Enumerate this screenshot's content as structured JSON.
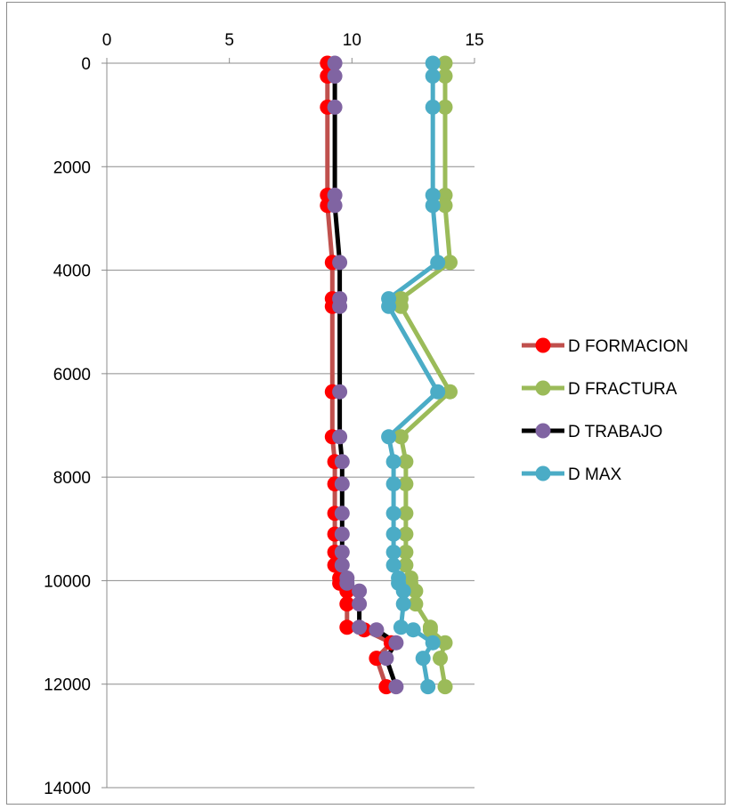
{
  "chart_data": {
    "type": "line",
    "title": "",
    "xlabel": "",
    "ylabel": "",
    "x_axis_position": "top",
    "y_axis_inverted": true,
    "xlim": [
      0,
      15
    ],
    "ylim": [
      0,
      14000
    ],
    "x_ticks": [
      "0",
      "5",
      "10",
      "15"
    ],
    "y_ticks": [
      "0",
      "2000",
      "4000",
      "6000",
      "8000",
      "10000",
      "12000",
      "14000"
    ],
    "grid": "horizontal major",
    "legend_position": "right",
    "depth": [
      0,
      250,
      850,
      2550,
      2750,
      3850,
      4550,
      4700,
      6350,
      7220,
      7700,
      8130,
      8700,
      9100,
      9450,
      9700,
      9950,
      10050,
      10200,
      10450,
      10900,
      10950,
      11200,
      11500,
      12050
    ],
    "series": [
      {
        "name": "D FORMACION",
        "line_color": "#c0504d",
        "marker_color": "#ff0000",
        "values": [
          9.0,
          9.0,
          9.0,
          9.0,
          9.0,
          9.2,
          9.2,
          9.2,
          9.2,
          9.2,
          9.3,
          9.3,
          9.3,
          9.3,
          9.3,
          9.3,
          9.5,
          9.5,
          9.8,
          9.8,
          9.8,
          10.5,
          11.6,
          11.0,
          11.4
        ]
      },
      {
        "name": "D FRACTURA",
        "line_color": "#9bbb59",
        "marker_color": "#9bbb59",
        "values": [
          13.8,
          13.8,
          13.8,
          13.8,
          13.8,
          14.0,
          12.0,
          12.0,
          14.0,
          12.0,
          12.2,
          12.2,
          12.2,
          12.2,
          12.2,
          12.2,
          12.4,
          12.4,
          12.6,
          12.6,
          13.2,
          13.2,
          13.8,
          13.6,
          13.8
        ]
      },
      {
        "name": "D TRABAJO",
        "line_color": "#000000",
        "marker_color": "#8064a2",
        "values": [
          9.3,
          9.3,
          9.3,
          9.3,
          9.3,
          9.5,
          9.5,
          9.5,
          9.5,
          9.5,
          9.6,
          9.6,
          9.6,
          9.6,
          9.6,
          9.6,
          9.8,
          9.8,
          10.3,
          10.3,
          10.3,
          11.0,
          11.8,
          11.4,
          11.8
        ]
      },
      {
        "name": "D MAX",
        "line_color": "#4bacc6",
        "marker_color": "#4bacc6",
        "values": [
          13.3,
          13.3,
          13.3,
          13.3,
          13.3,
          13.5,
          11.5,
          11.5,
          13.5,
          11.5,
          11.7,
          11.7,
          11.7,
          11.7,
          11.7,
          11.7,
          11.9,
          11.9,
          12.1,
          12.1,
          12.0,
          12.5,
          13.3,
          12.9,
          13.1
        ]
      }
    ]
  }
}
